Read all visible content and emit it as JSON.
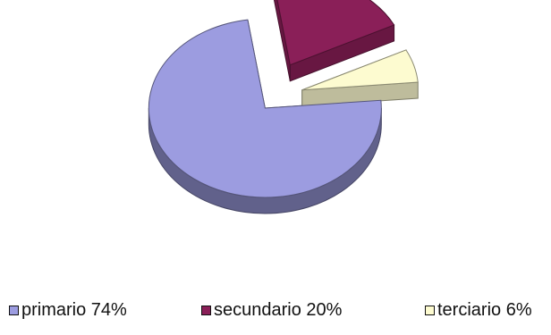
{
  "chart_data": {
    "type": "pie",
    "exploded": true,
    "style": "3d",
    "categories": [
      "primario",
      "secundario",
      "terciario"
    ],
    "values": [
      74,
      20,
      6
    ],
    "colors": [
      "#9c9ce0",
      "#8a1f58",
      "#fdfbd0"
    ],
    "legend_position": "bottom",
    "legend": [
      {
        "label": "primario 74%"
      },
      {
        "label": "secundario 20%"
      },
      {
        "label": "terciario 6%"
      }
    ]
  }
}
